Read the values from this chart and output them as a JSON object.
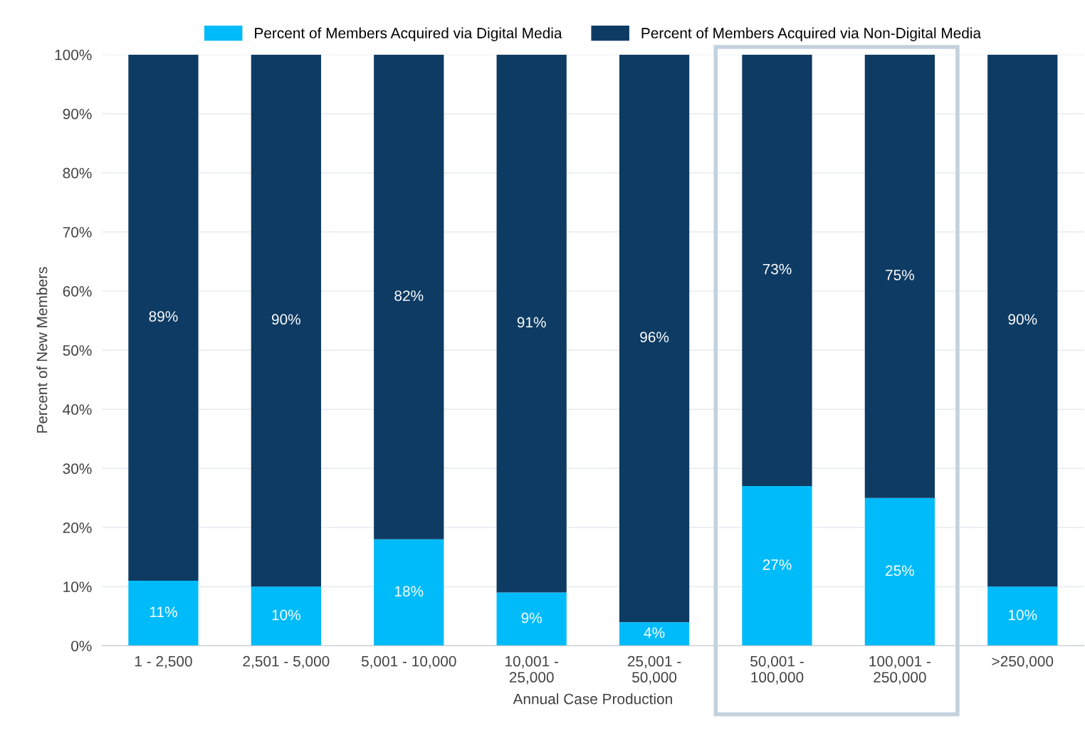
{
  "chart_data": {
    "type": "bar",
    "stacked": true,
    "xlabel": "Annual Case Production",
    "ylabel": "Percent of New Members",
    "categories": [
      "1 - 2,500",
      "2,501 - 5,000",
      "5,001 - 10,000",
      "10,001 -\n25,000",
      "25,001 -\n50,000",
      "50,001 -\n100,000",
      "100,001 -\n250,000",
      ">250,000"
    ],
    "series": [
      {
        "name": "Percent of Members Acquired via Digital Media",
        "color": "#00bbf9",
        "values": [
          11,
          10,
          18,
          9,
          4,
          27,
          25,
          10
        ],
        "value_labels": [
          "11%",
          "10%",
          "18%",
          "9%",
          "4%",
          "27%",
          "25%",
          "10%"
        ]
      },
      {
        "name": "Percent of Members Acquired via Non-Digital Media",
        "color": "#0e3b63",
        "values": [
          89,
          90,
          82,
          91,
          96,
          73,
          75,
          90
        ],
        "value_labels": [
          "89%",
          "90%",
          "82%",
          "91%",
          "96%",
          "73%",
          "75%",
          "90%"
        ]
      }
    ],
    "ylim": [
      0,
      100
    ],
    "yticks": [
      {
        "value": 0,
        "label": "0%"
      },
      {
        "value": 10,
        "label": "10%"
      },
      {
        "value": 20,
        "label": "20%"
      },
      {
        "value": 30,
        "label": "30%"
      },
      {
        "value": 40,
        "label": "40%"
      },
      {
        "value": 50,
        "label": "50%"
      },
      {
        "value": 60,
        "label": "60%"
      },
      {
        "value": 70,
        "label": "70%"
      },
      {
        "value": 80,
        "label": "80%"
      },
      {
        "value": 90,
        "label": "90%"
      },
      {
        "value": 100,
        "label": "100%"
      }
    ],
    "grid": "y",
    "legend": "top"
  }
}
